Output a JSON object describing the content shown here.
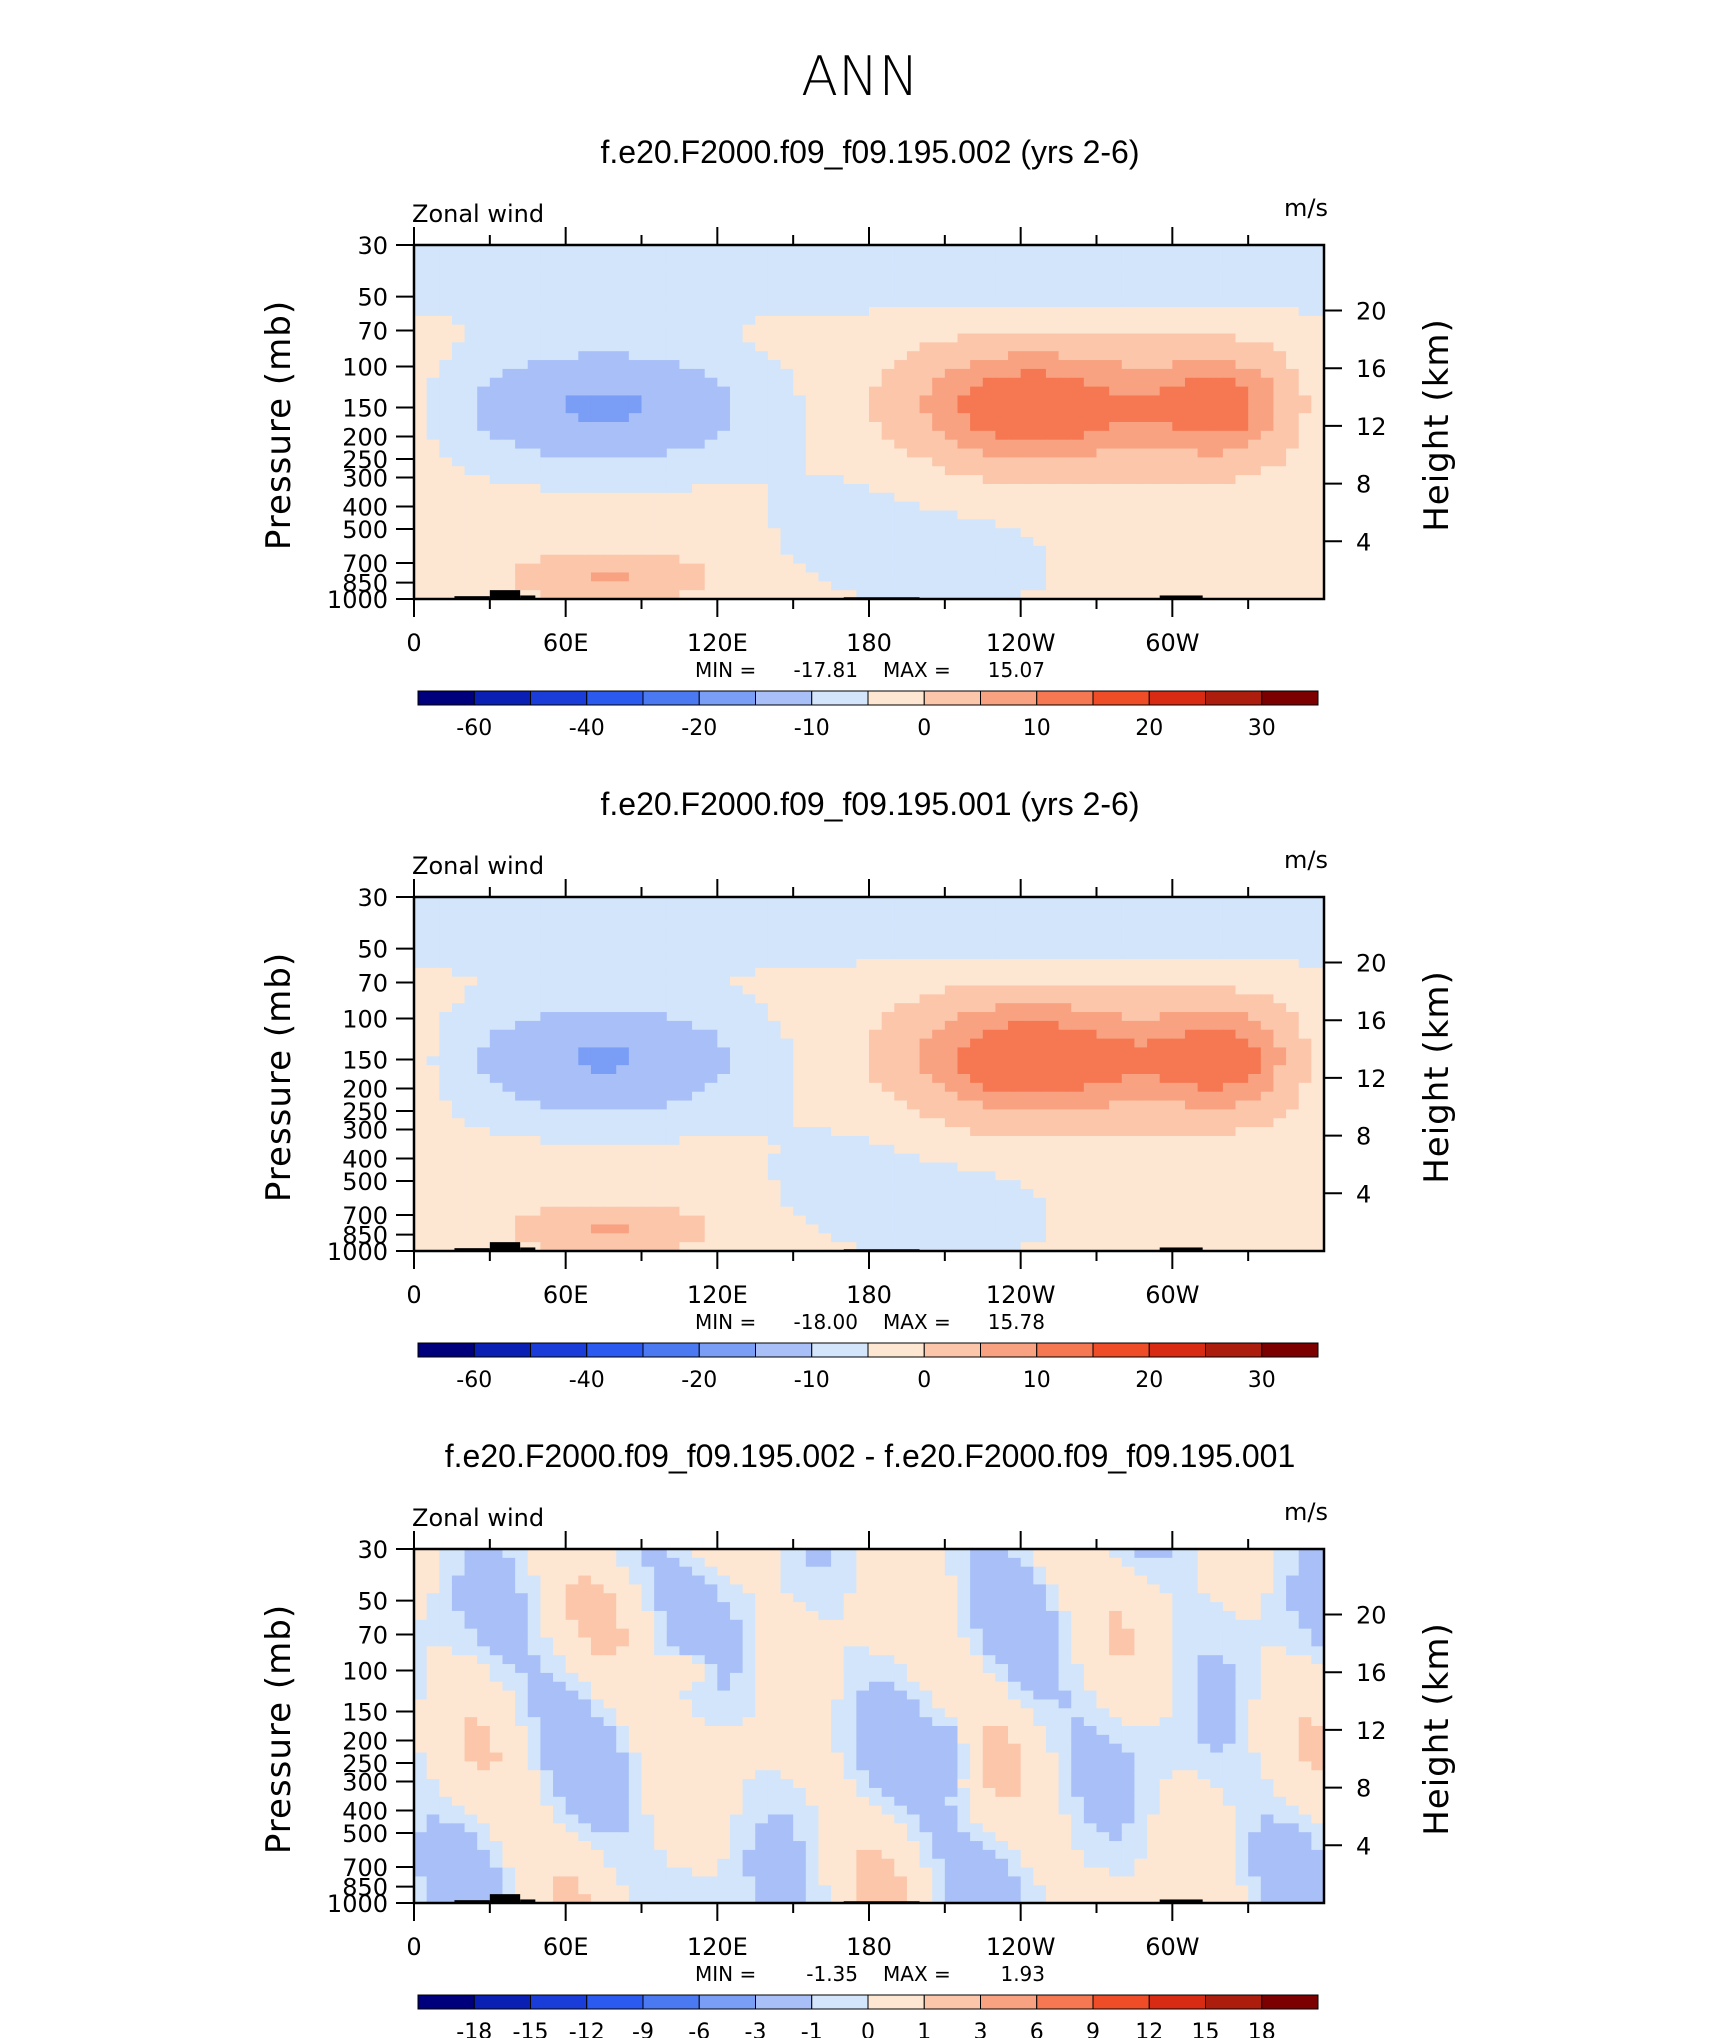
{
  "title": "ANN",
  "colors": {
    "palette": [
      "#00007d",
      "#0a1fb3",
      "#1a3cd8",
      "#2a5af0",
      "#4a79f2",
      "#7a9df5",
      "#a8c0f7",
      "#d2e5fb",
      "#fde7d3",
      "#fcc6ab",
      "#f8a281",
      "#f57852",
      "#ef4d27",
      "#d92a13",
      "#ad1d0d",
      "#7d0000"
    ],
    "diff_palette": [
      "#00007d",
      "#0a1fb3",
      "#1a3cd8",
      "#2a5af0",
      "#4a79f2",
      "#7a9df5",
      "#a8c0f7",
      "#d2e5fb",
      "#fde7d3",
      "#fcc6ab",
      "#f8a281",
      "#f57852",
      "#ef4d27",
      "#d92a13",
      "#ad1d0d",
      "#7d0000"
    ]
  },
  "chart_data": [
    {
      "type": "heatmap",
      "title": "f.e20.F2000.f09_f09.195.002 (yrs 2-6)",
      "left_label": "Zonal wind",
      "right_label": "m/s",
      "ylabel": "Pressure (mb)",
      "y2label": "Height (km)",
      "xticks": [
        "0",
        "60E",
        "120E",
        "180",
        "120W",
        "60W"
      ],
      "yticks": [
        "30",
        "50",
        "70",
        "100",
        "150",
        "200",
        "250",
        "300",
        "400",
        "500",
        "700",
        "850",
        "1000"
      ],
      "y2ticks": [
        "20",
        "16",
        "12",
        "8",
        "4"
      ],
      "stats": {
        "min_label": "MIN =",
        "min": "-17.81",
        "max_label": "MAX =",
        "max": "15.07"
      },
      "colorbar_labels": [
        "-60",
        "-40",
        "-20",
        "-10",
        "0",
        "10",
        "20",
        "30"
      ],
      "min": -17.81,
      "max": 15.07,
      "variant": 1
    },
    {
      "type": "heatmap",
      "title": "f.e20.F2000.f09_f09.195.001 (yrs 2-6)",
      "left_label": "Zonal wind",
      "right_label": "m/s",
      "ylabel": "Pressure (mb)",
      "y2label": "Height (km)",
      "xticks": [
        "0",
        "60E",
        "120E",
        "180",
        "120W",
        "60W"
      ],
      "yticks": [
        "30",
        "50",
        "70",
        "100",
        "150",
        "200",
        "250",
        "300",
        "400",
        "500",
        "700",
        "850",
        "1000"
      ],
      "y2ticks": [
        "20",
        "16",
        "12",
        "8",
        "4"
      ],
      "stats": {
        "min_label": "MIN =",
        "min": "-18.00",
        "max_label": "MAX =",
        "max": "15.78"
      },
      "colorbar_labels": [
        "-60",
        "-40",
        "-20",
        "-10",
        "0",
        "10",
        "20",
        "30"
      ],
      "min": -18.0,
      "max": 15.78,
      "variant": 2
    },
    {
      "type": "heatmap",
      "title": "f.e20.F2000.f09_f09.195.002 - f.e20.F2000.f09_f09.195.001",
      "left_label": "Zonal wind",
      "right_label": "m/s",
      "ylabel": "Pressure (mb)",
      "y2label": "Height (km)",
      "xticks": [
        "0",
        "60E",
        "120E",
        "180",
        "120W",
        "60W"
      ],
      "yticks": [
        "30",
        "50",
        "70",
        "100",
        "150",
        "200",
        "250",
        "300",
        "400",
        "500",
        "700",
        "850",
        "1000"
      ],
      "y2ticks": [
        "20",
        "16",
        "12",
        "8",
        "4"
      ],
      "stats": {
        "min_label": "MIN =",
        "min": "-1.35",
        "max_label": "MAX =",
        "max": "1.93"
      },
      "colorbar_labels": [
        "-18",
        "-15",
        "-12",
        "-9",
        "-6",
        "-3",
        "-1",
        "0",
        "1",
        "3",
        "6",
        "9",
        "12",
        "15",
        "18"
      ],
      "min": -1.35,
      "max": 1.93,
      "variant": 3
    }
  ]
}
